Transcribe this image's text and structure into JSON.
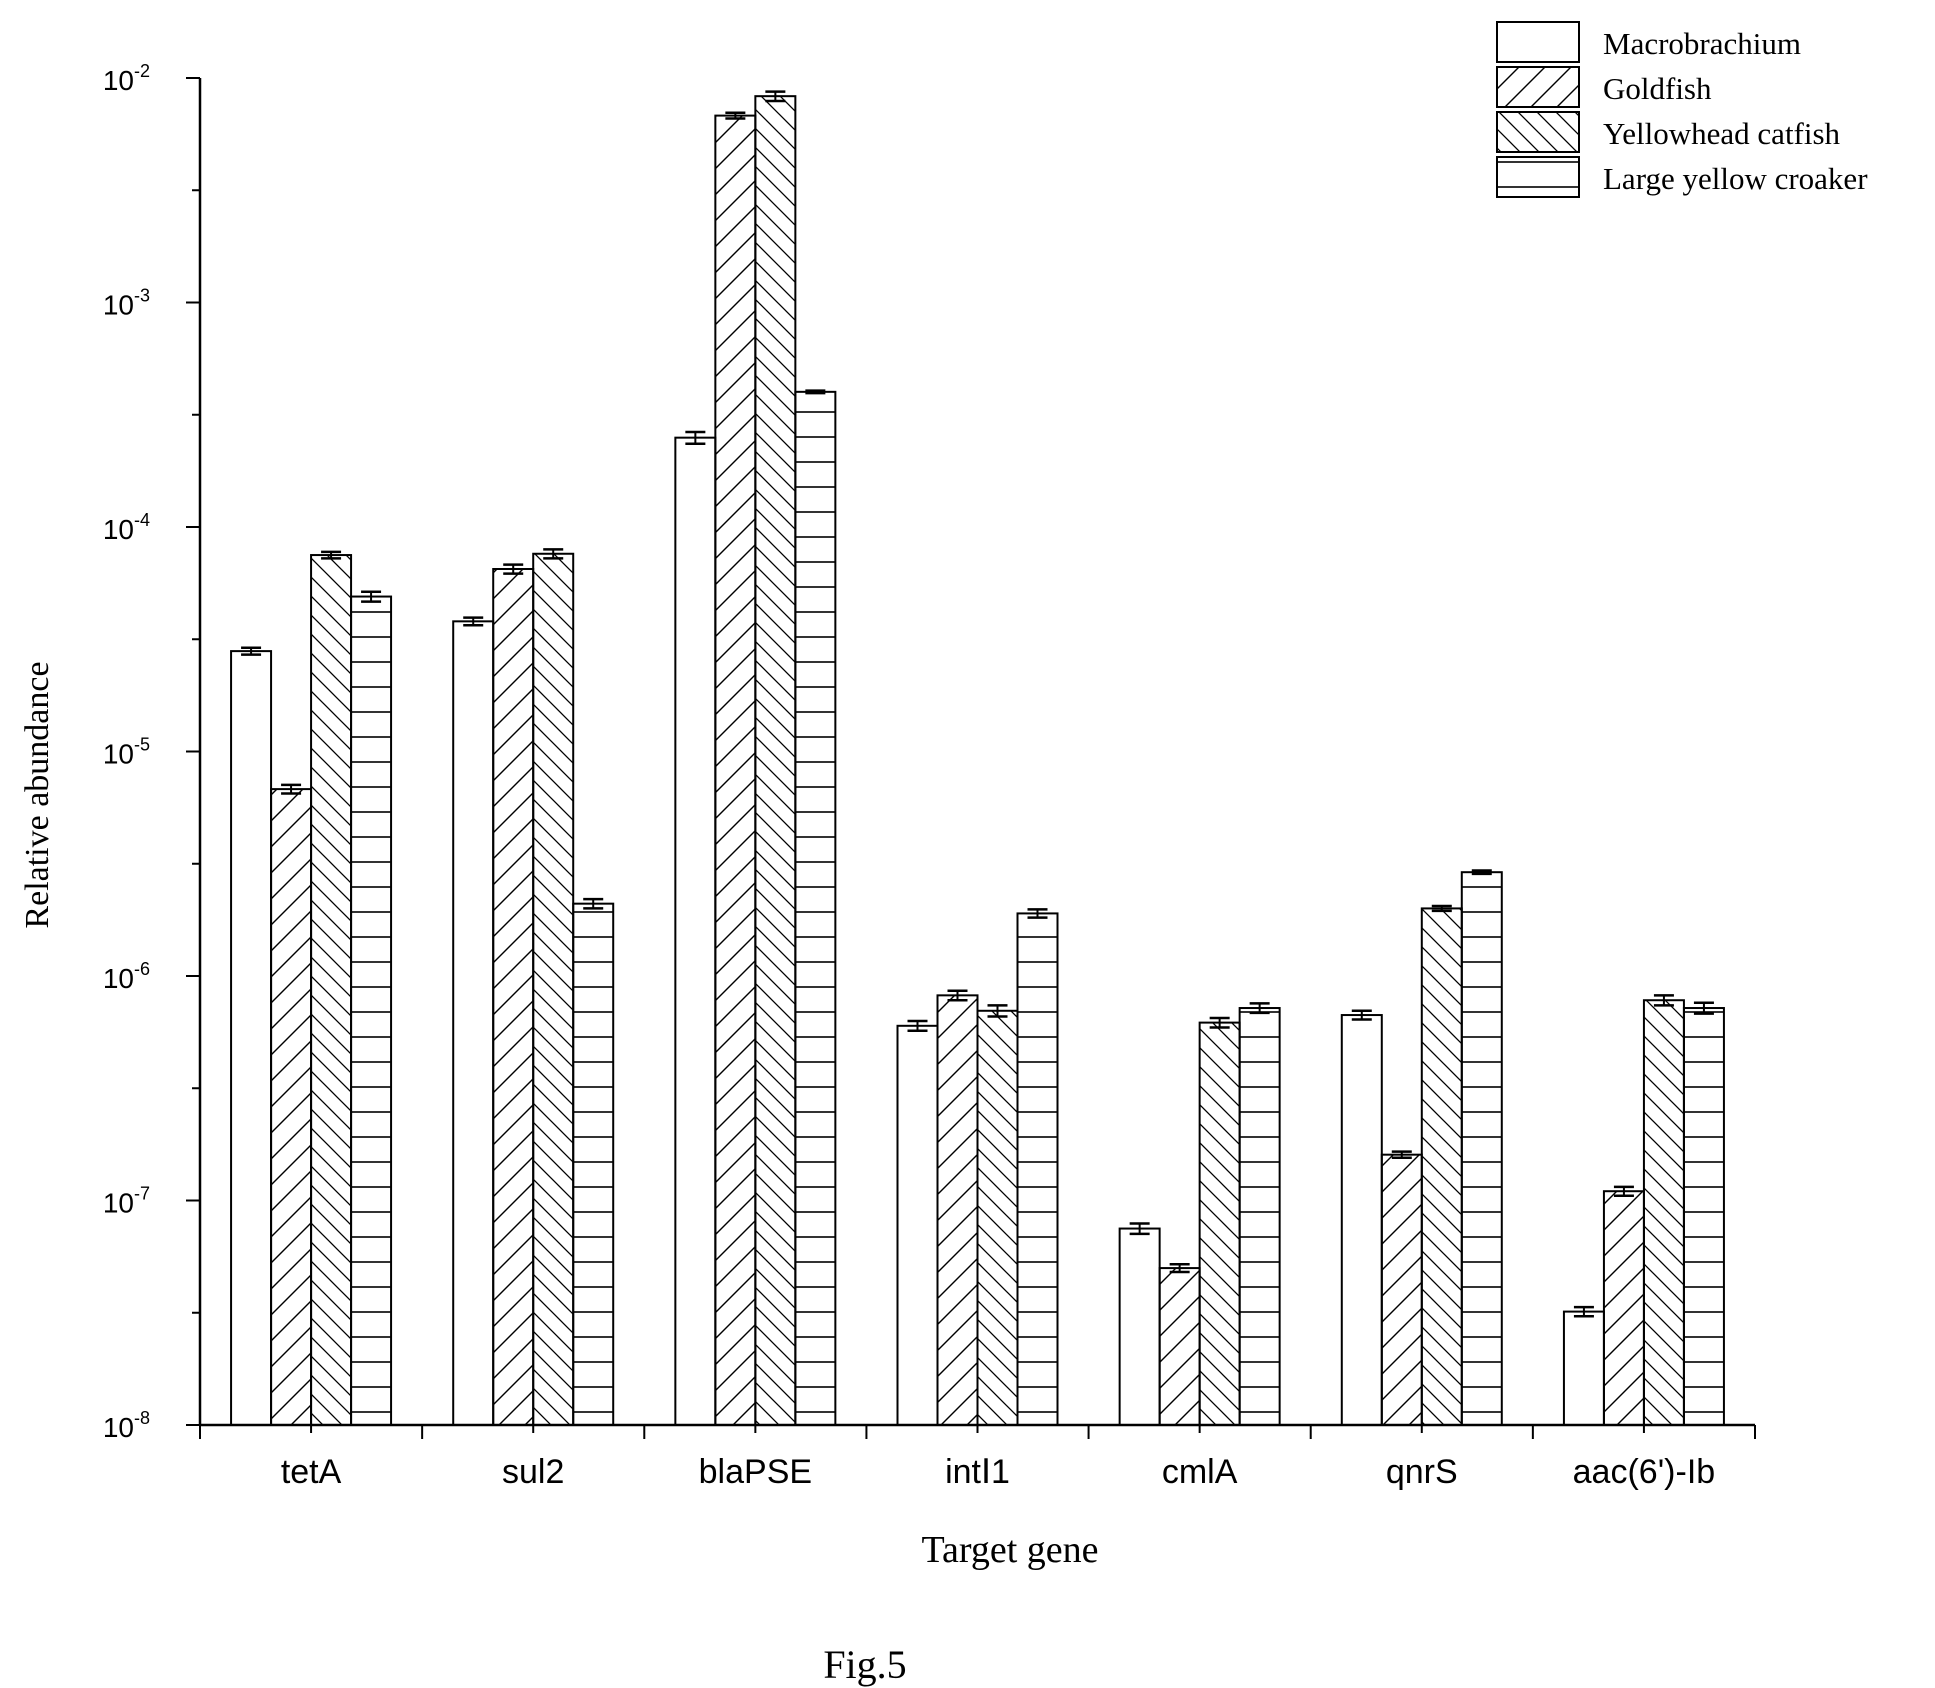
{
  "chart_data": {
    "type": "bar",
    "y_scale": "log",
    "ylim": [
      1e-08,
      0.01
    ],
    "ytick_values": [
      1e-08,
      1e-07,
      1e-06,
      1e-05,
      0.0001,
      0.001,
      0.01
    ],
    "ytick_labels": [
      {
        "base": "10",
        "exp": "-8"
      },
      {
        "base": "10",
        "exp": "-7"
      },
      {
        "base": "10",
        "exp": "-6"
      },
      {
        "base": "10",
        "exp": "-5"
      },
      {
        "base": "10",
        "exp": "-4"
      },
      {
        "base": "10",
        "exp": "-3"
      },
      {
        "base": "10",
        "exp": "-2"
      }
    ],
    "xlabel": "Target gene",
    "ylabel": "Relative abundance",
    "caption": "Fig.5",
    "grid": false,
    "legend_position": "top-right",
    "categories": [
      "tetA",
      "sul2",
      "blaPSE",
      "intⅠ1",
      "cmlA",
      "qnrS",
      "aac(6')-Ib"
    ],
    "series": [
      {
        "name": "Macrobrachium",
        "pattern": "none",
        "values": [
          2.8e-05,
          3.8e-05,
          0.00025,
          6e-07,
          7.5e-08,
          6.7e-07,
          3.2e-08
        ],
        "errors": [
          1e-06,
          1.5e-06,
          1.5e-05,
          3e-08,
          4e-09,
          3e-08,
          1.5e-09
        ]
      },
      {
        "name": "Goldfish",
        "pattern": "forward-diagonal",
        "values": [
          6.8e-06,
          6.5e-05,
          0.0068,
          8.2e-07,
          5e-08,
          1.6e-07,
          1.1e-07
        ],
        "errors": [
          3e-07,
          3e-06,
          0.0002,
          4e-08,
          2e-09,
          5e-09,
          5e-09
        ]
      },
      {
        "name": "Yellowhead catfish",
        "pattern": "back-diagonal",
        "values": [
          7.5e-05,
          7.6e-05,
          0.0083,
          7e-07,
          6.2e-07,
          2e-06,
          7.8e-07
        ],
        "errors": [
          2.5e-06,
          3.5e-06,
          0.0004,
          4e-08,
          3e-08,
          5e-08,
          4e-08
        ]
      },
      {
        "name": "Large yellow croaker",
        "pattern": "horizontal",
        "values": [
          4.9e-05,
          2.1e-06,
          0.0004,
          1.9e-06,
          7.2e-07,
          2.9e-06,
          7.2e-07
        ],
        "errors": [
          2.5e-06,
          1e-07,
          5e-06,
          8e-08,
          3.5e-08,
          5e-08,
          4e-08
        ]
      }
    ]
  }
}
